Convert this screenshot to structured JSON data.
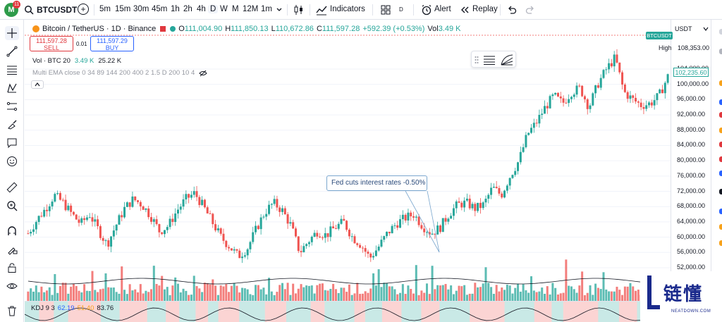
{
  "app": {
    "logo_letter": "M",
    "notification_count": "11"
  },
  "toolbar": {
    "symbol": "BTCUSDT",
    "intervals": [
      "5m",
      "15m",
      "30m",
      "45m",
      "1h",
      "2h",
      "4h",
      "D",
      "W",
      "M",
      "12M",
      "1m"
    ],
    "active_interval": "D",
    "indicators_label": "Indicators",
    "layout_badge": "D",
    "alert_label": "Alert",
    "replay_label": "Replay"
  },
  "legend": {
    "title": "Bitcoin / TetherUS · 1D · Binance",
    "open_key": "O",
    "open": "111,004.90",
    "high_key": "H",
    "high": "111,850.13",
    "low_key": "L",
    "low": "110,672.86",
    "close_key": "C",
    "close": "111,597.28",
    "change": "+592.39 (+0.53%)",
    "vol_key": "Vol",
    "vol": "3.49 K"
  },
  "trade": {
    "sell_price": "111,597.28",
    "sell_label": "SELL",
    "spread": "0.01",
    "buy_price": "111,597.29",
    "buy_label": "BUY"
  },
  "indicators": {
    "volume": {
      "label": "Vol · BTC 20",
      "value1": "3.49 K",
      "value2": "25.22 K"
    },
    "ema": {
      "label": "Multi EMA close 0 34 89 144 200 400 2 1.5 D 200 10 4"
    },
    "kdj": {
      "label": "KDJ 9 3",
      "k": "62.19",
      "d": "51.40",
      "j": "83.76"
    }
  },
  "annotation": {
    "text": "Fed cuts interest rates -0.50%"
  },
  "price_axis": {
    "currency": "USDT",
    "pair_tag": "BTCUSDT",
    "high_label": "High",
    "high_value": "108,353.00",
    "current_price": "102,235.60",
    "ticks": [
      "104,000.00",
      "100,000.00",
      "96,000.00",
      "92,000.00",
      "88,000.00",
      "84,000.00",
      "80,000.00",
      "76,000.00",
      "72,000.00",
      "68,000.00",
      "64,000.00",
      "60,000.00",
      "56,000.00",
      "52,000.00"
    ]
  },
  "colors": {
    "up": "#26a69a",
    "down": "#ef5350",
    "accent": "#2962ff",
    "grid": "#f0f3fa"
  },
  "watermark": {
    "main": "链懂",
    "sub": "NEATDOWN.COM"
  },
  "chart_data": {
    "type": "candlestick",
    "title": "Bitcoin / TetherUS · 1D · Binance",
    "ylim": [
      50000,
      112000
    ],
    "annotation": "Fed cuts interest rates -0.50%",
    "close_path": [
      61000,
      64500,
      67500,
      71000,
      69000,
      66000,
      63500,
      66000,
      62000,
      58000,
      63000,
      67500,
      70000,
      68500,
      65500,
      61500,
      63000,
      67000,
      70000,
      71500,
      68000,
      64000,
      60000,
      57500,
      55000,
      57000,
      62000,
      66500,
      69000,
      67000,
      63000,
      56000,
      59000,
      61500,
      60500,
      62500,
      64000,
      60000,
      58000,
      54500,
      57500,
      61000,
      63500,
      65000,
      66000,
      63000,
      61000,
      62500,
      66000,
      68500,
      69000,
      67500,
      68500,
      73000,
      71000,
      76000,
      80000,
      87000,
      90000,
      94000,
      97000,
      95000,
      98000,
      99000,
      94000,
      100000,
      104000,
      107000,
      98000,
      96000,
      94500,
      95000,
      97000,
      102000
    ]
  }
}
